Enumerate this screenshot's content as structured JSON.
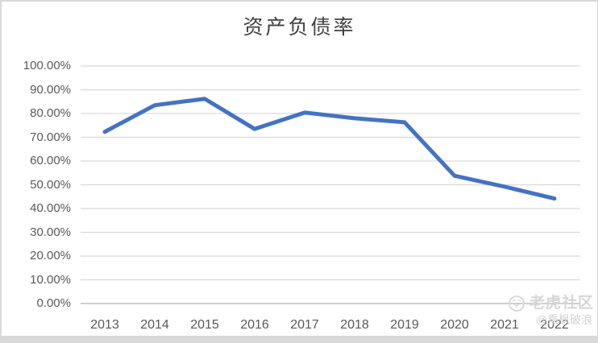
{
  "title": "资产负债率",
  "watermark": {
    "brand": "老虎社区",
    "handle": "@乘枫破浪",
    "icon": "tiger-logo"
  },
  "colors": {
    "line": "#4472C4",
    "gridline": "#D9D9D9",
    "axis": "#BFBFBF",
    "tick_text": "#595959",
    "title_text": "#404040",
    "watermark_text": "#D6D6D6",
    "bottom_bar": "#D9D9D9"
  },
  "chart_data": {
    "type": "line",
    "title": "资产负债率",
    "categories": [
      "2013",
      "2014",
      "2015",
      "2016",
      "2017",
      "2018",
      "2019",
      "2020",
      "2021",
      "2022"
    ],
    "series": [
      {
        "name": "资产负债率",
        "values": [
          72.3,
          83.5,
          86.2,
          73.5,
          80.4,
          78.0,
          76.3,
          53.8,
          49.2,
          44.2
        ]
      }
    ],
    "xlabel": "",
    "ylabel": "",
    "ylim": [
      0,
      100
    ],
    "ytick_step": 10,
    "ytick_labels": [
      "0.00%",
      "10.00%",
      "20.00%",
      "30.00%",
      "40.00%",
      "50.00%",
      "60.00%",
      "70.00%",
      "80.00%",
      "90.00%",
      "100.00%"
    ],
    "grid": true,
    "legend_position": "none"
  }
}
